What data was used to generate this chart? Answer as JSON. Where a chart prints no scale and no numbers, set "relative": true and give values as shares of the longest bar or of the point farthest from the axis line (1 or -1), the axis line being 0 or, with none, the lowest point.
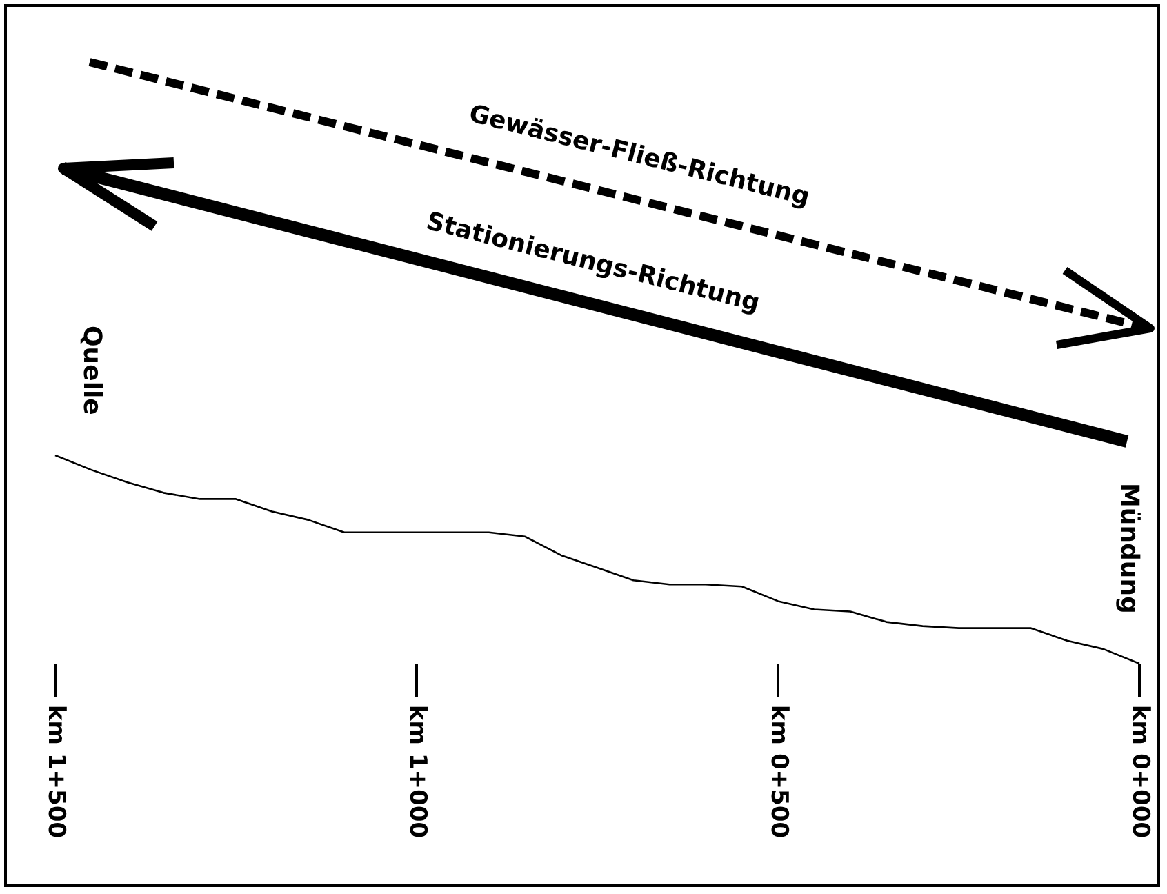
{
  "chart_data": {
    "type": "line",
    "relative": true,
    "marker": "none",
    "line_style": "solid",
    "categories": [
      "km 1+500",
      null,
      null,
      null,
      null,
      null,
      null,
      null,
      null,
      null,
      "km 1+000",
      null,
      null,
      null,
      null,
      null,
      null,
      null,
      null,
      null,
      "km 0+500",
      null,
      null,
      null,
      null,
      null,
      null,
      null,
      null,
      null,
      "km 0+000"
    ],
    "series": [
      {
        "color": "#000000",
        "values": [
          1.0,
          0.93,
          0.87,
          0.82,
          0.79,
          0.79,
          0.73,
          0.69,
          0.63,
          0.63,
          0.63,
          0.63,
          0.63,
          0.61,
          0.52,
          0.46,
          0.4,
          0.38,
          0.38,
          0.37,
          0.3,
          0.26,
          0.25,
          0.2,
          0.18,
          0.17,
          0.17,
          0.17,
          0.11,
          0.07,
          0
        ]
      }
    ],
    "annotations": [
      "Gewässer-Fließ-Richtung",
      "Stationierungs-Richtung",
      "Quelle",
      "Mündung"
    ]
  }
}
